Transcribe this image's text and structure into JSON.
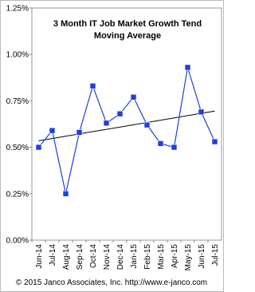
{
  "chart_data": {
    "type": "line",
    "title": [
      "3 Month IT Job Market Growth Tend",
      "Moving Average"
    ],
    "categories": [
      "Jun-14",
      "Jul-14",
      "Aug-14",
      "Sep-14",
      "Oct-14",
      "Nov-14",
      "Dec-14",
      "Jan-15",
      "Feb-15",
      "Mar-15",
      "Apr-15",
      "May-15",
      "Jun-15",
      "Jul-15"
    ],
    "series": [
      {
        "color": "#1f3fdd",
        "values": [
          0.5,
          0.59,
          0.25,
          0.58,
          0.83,
          0.63,
          0.68,
          0.77,
          0.62,
          0.52,
          0.5,
          0.93,
          0.69,
          0.53
        ]
      }
    ],
    "trend": {
      "start": 0.535,
      "end": 0.695,
      "color": "#000000"
    },
    "ylim": [
      0,
      1.25
    ],
    "yticks": [
      {
        "value": 0,
        "label": "0.00%"
      },
      {
        "value": 0.25,
        "label": "0.25%"
      },
      {
        "value": 0.5,
        "label": "0.50%"
      },
      {
        "value": 0.75,
        "label": "0.75%"
      },
      {
        "value": 1.0,
        "label": "1.00%"
      },
      {
        "value": 1.25,
        "label": "1.25%"
      }
    ],
    "footer": "© 2015 Janco Associates, Inc. http://www.e-janco.com"
  }
}
